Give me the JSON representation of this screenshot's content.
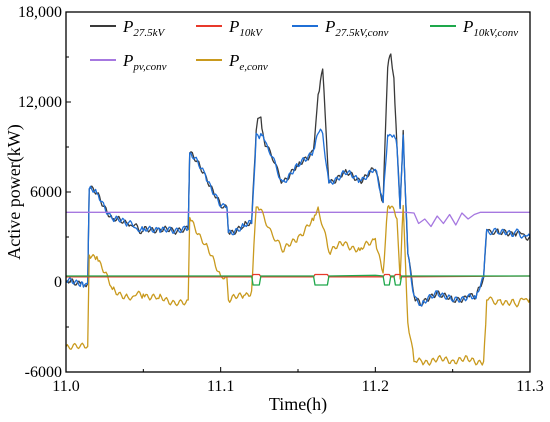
{
  "chart_data": {
    "type": "line",
    "xlabel": "Time(h)",
    "ylabel": "Active power(kW)",
    "xlim": [
      11.0,
      11.3
    ],
    "ylim": [
      -6000,
      18000
    ],
    "x_ticks": [
      "11.0",
      "11.1",
      "11.2",
      "11.3"
    ],
    "y_ticks": [
      "-6000",
      "0",
      "6000",
      "12,000",
      "18,000"
    ],
    "legend_placement": "top",
    "series": [
      {
        "name": "P27.5kV",
        "name_main": "P",
        "name_sub": "27.5kV",
        "color": "#3a3a3a",
        "x": [
          11.0,
          11.01,
          11.012,
          11.014,
          11.015,
          11.02,
          11.03,
          11.04,
          11.05,
          11.06,
          11.07,
          11.079,
          11.08,
          11.09,
          11.1,
          11.104,
          11.105,
          11.115,
          11.12,
          11.123,
          11.124,
          11.126,
          11.128,
          11.14,
          11.15,
          11.16,
          11.163,
          11.166,
          11.17,
          11.18,
          11.19,
          11.2,
          11.205,
          11.208,
          11.21,
          11.212,
          11.214,
          11.216,
          11.218,
          11.221,
          11.225,
          11.23,
          11.24,
          11.25,
          11.26,
          11.265,
          11.27,
          11.272,
          11.28,
          11.29,
          11.3
        ],
        "y": [
          0,
          0,
          -200,
          -100,
          6200,
          5900,
          4200,
          3900,
          3400,
          3600,
          3300,
          3500,
          8600,
          7200,
          5000,
          5000,
          3300,
          3700,
          3900,
          10100,
          10900,
          11000,
          9500,
          6700,
          7700,
          8800,
          12500,
          14200,
          6600,
          7300,
          6800,
          7500,
          5300,
          14300,
          15200,
          13600,
          9000,
          4900,
          10100,
          1900,
          -900,
          -1600,
          -600,
          -1300,
          -900,
          -1100,
          300,
          3500,
          3200,
          3300,
          3000
        ]
      },
      {
        "name": "P10kV",
        "name_main": "P",
        "name_sub": "10kV",
        "color": "#e8392b",
        "x": [
          11.0,
          11.12,
          11.121,
          11.125,
          11.126,
          11.16,
          11.161,
          11.169,
          11.17,
          11.205,
          11.206,
          11.209,
          11.21,
          11.212,
          11.213,
          11.216,
          11.217,
          11.3
        ],
        "y": [
          350,
          350,
          500,
          500,
          350,
          350,
          500,
          500,
          350,
          350,
          500,
          500,
          350,
          350,
          500,
          500,
          350,
          400
        ]
      },
      {
        "name": "P27.5kV,conv",
        "name_main": "P",
        "name_sub": "27.5kV,conv",
        "color": "#1f6fd6",
        "x": [
          11.0,
          11.01,
          11.012,
          11.014,
          11.015,
          11.02,
          11.03,
          11.04,
          11.05,
          11.06,
          11.07,
          11.079,
          11.08,
          11.09,
          11.1,
          11.104,
          11.105,
          11.115,
          11.12,
          11.123,
          11.124,
          11.126,
          11.128,
          11.14,
          11.15,
          11.16,
          11.163,
          11.166,
          11.17,
          11.18,
          11.19,
          11.2,
          11.205,
          11.208,
          11.21,
          11.212,
          11.214,
          11.216,
          11.218,
          11.221,
          11.225,
          11.23,
          11.24,
          11.25,
          11.26,
          11.265,
          11.27,
          11.272,
          11.28,
          11.29,
          11.3
        ],
        "y": [
          0,
          0,
          -200,
          -100,
          6200,
          5900,
          4200,
          3900,
          3400,
          3600,
          3300,
          3500,
          8600,
          7200,
          5000,
          5000,
          3300,
          3700,
          3900,
          9900,
          9800,
          9900,
          9500,
          6700,
          7700,
          8800,
          9900,
          9900,
          6600,
          7300,
          6800,
          7500,
          5300,
          9800,
          9800,
          9800,
          9000,
          4900,
          9800,
          1900,
          -900,
          -1600,
          -600,
          -1300,
          -900,
          -1100,
          300,
          3500,
          3200,
          3300,
          3000
        ]
      },
      {
        "name": "P10kV,conv",
        "name_main": "P",
        "name_sub": "10kV,conv",
        "color": "#1ea84b",
        "x": [
          11.0,
          11.12,
          11.121,
          11.125,
          11.126,
          11.16,
          11.161,
          11.169,
          11.17,
          11.2,
          11.205,
          11.206,
          11.209,
          11.21,
          11.212,
          11.213,
          11.216,
          11.217,
          11.3
        ],
        "y": [
          400,
          400,
          -200,
          -200,
          400,
          400,
          -200,
          -200,
          400,
          450,
          400,
          -200,
          -200,
          400,
          400,
          -200,
          -200,
          400,
          400
        ]
      },
      {
        "name": "Ppv,conv",
        "name_main": "P",
        "name_sub": "pv,conv",
        "color": "#a678e0",
        "x": [
          11.0,
          11.22,
          11.225,
          11.228,
          11.232,
          11.236,
          11.24,
          11.244,
          11.248,
          11.252,
          11.256,
          11.26,
          11.264,
          11.268,
          11.3
        ],
        "y": [
          4650,
          4650,
          4600,
          3900,
          4200,
          3700,
          4400,
          3900,
          4500,
          3800,
          4600,
          4200,
          4500,
          4650,
          4650
        ]
      },
      {
        "name": "Pe,conv",
        "name_main": "P",
        "name_sub": "e,conv",
        "color": "#c99a1e",
        "x": [
          11.0,
          11.013,
          11.014,
          11.015,
          11.02,
          11.03,
          11.04,
          11.05,
          11.06,
          11.07,
          11.079,
          11.08,
          11.09,
          11.1,
          11.104,
          11.105,
          11.115,
          11.12,
          11.123,
          11.124,
          11.14,
          11.15,
          11.16,
          11.163,
          11.17,
          11.18,
          11.19,
          11.2,
          11.205,
          11.208,
          11.21,
          11.214,
          11.216,
          11.218,
          11.221,
          11.225,
          11.23,
          11.24,
          11.25,
          11.26,
          11.27,
          11.272,
          11.28,
          11.29,
          11.3
        ],
        "y": [
          -4300,
          -4400,
          -4300,
          1800,
          1700,
          -500,
          -1000,
          -800,
          -1100,
          -1300,
          -1200,
          4300,
          2500,
          400,
          300,
          -1200,
          -900,
          -600,
          5000,
          5000,
          2000,
          3000,
          4100,
          5000,
          2000,
          2600,
          2100,
          2900,
          600,
          5000,
          5000,
          4200,
          200,
          5100,
          -2700,
          -5300,
          -5300,
          -5200,
          -5200,
          -5200,
          -5300,
          -1200,
          -1200,
          -1400,
          -1100
        ]
      }
    ]
  }
}
